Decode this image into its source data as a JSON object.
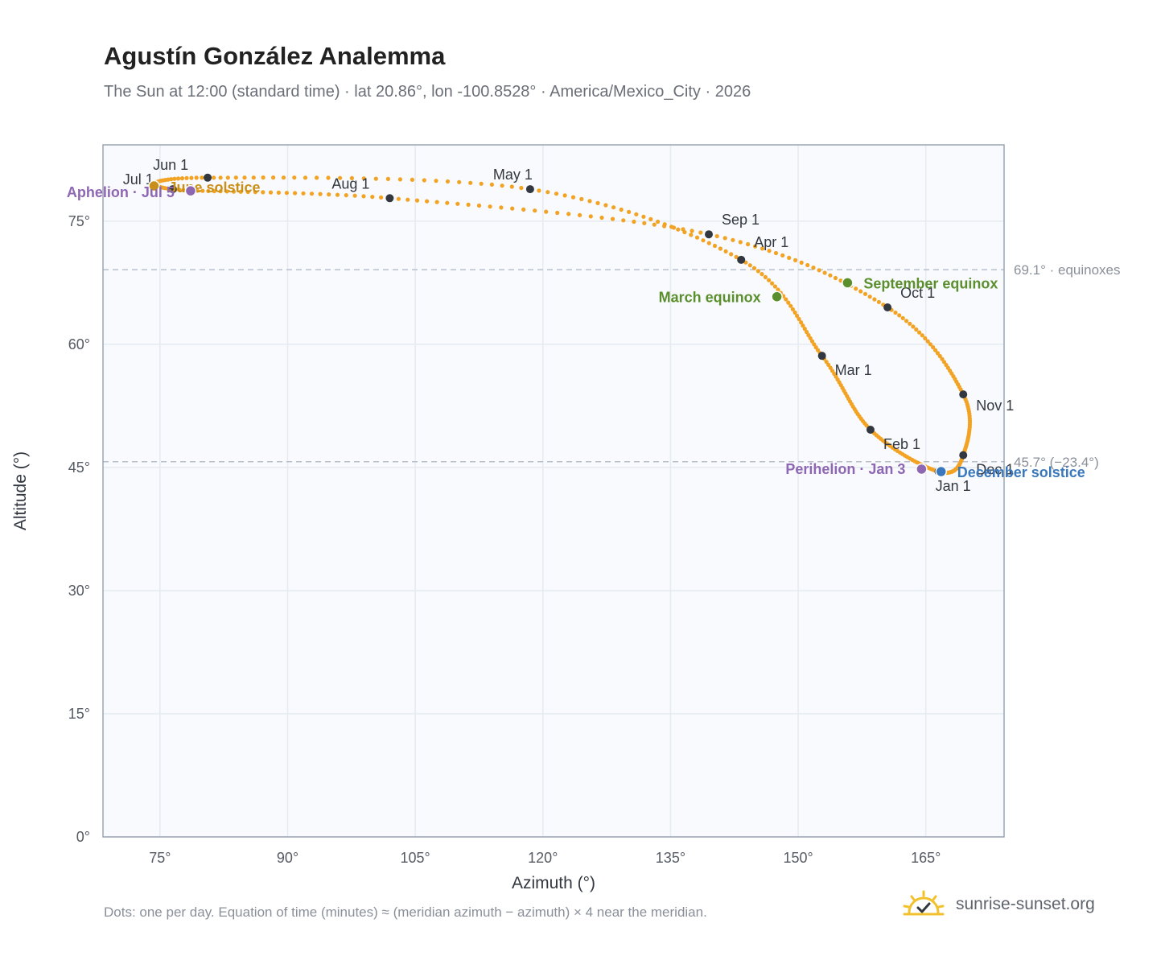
{
  "title": "Agustín González Analemma",
  "subtitle": "The Sun at 12:00 (standard time) · lat 20.86°, lon -100.8528° · America/Mexico_City · 2026",
  "footnote": "Dots: one per day. Equation of time (minutes) ≈ (meridian azimuth − azimuth) × 4 near the meridian.",
  "brand": {
    "name": "sunrise-sunset.org",
    "icon": "sun-logo-icon"
  },
  "colors": {
    "path": "#f2a324",
    "month_dot": "#333840",
    "equinox": "#5b8f2e",
    "solstice_june": "#c8901a",
    "solstice_december": "#3a78bd",
    "apsis": "#8e67b3",
    "plot_background": "#f8fafd",
    "grid": "#e6ebf1",
    "reference_line": "#b7c0cc"
  },
  "chart_data": {
    "type": "scatter",
    "xlabel": "Azimuth (°)",
    "ylabel": "Altitude (°)",
    "xlim": [
      68.3,
      174.2
    ],
    "ylim": [
      0,
      84.3
    ],
    "x_ticks": [
      75,
      90,
      105,
      120,
      135,
      150,
      165
    ],
    "x_tick_labels": [
      "75°",
      "90°",
      "105°",
      "120°",
      "135°",
      "150°",
      "165°"
    ],
    "y_ticks": [
      0,
      15,
      30,
      45,
      60,
      75
    ],
    "y_tick_labels": [
      "0°",
      "15°",
      "30°",
      "45°",
      "60°",
      "75°"
    ],
    "grid": true,
    "reference_lines": [
      {
        "altitude": 69.1,
        "label": "69.1° · equinoxes"
      },
      {
        "altitude": 45.7,
        "label": "45.7° (−23.4°)"
      }
    ],
    "month_points": [
      {
        "label": "Jan 1",
        "azimuth": 166.5,
        "altitude": 44.5
      },
      {
        "label": "Feb 1",
        "azimuth": 158.5,
        "altitude": 49.6
      },
      {
        "label": "Mar 1",
        "azimuth": 152.8,
        "altitude": 58.6
      },
      {
        "label": "Apr 1",
        "azimuth": 143.3,
        "altitude": 70.3
      },
      {
        "label": "May 1",
        "azimuth": 118.5,
        "altitude": 78.9
      },
      {
        "label": "Jun 1",
        "azimuth": 80.6,
        "altitude": 80.3
      },
      {
        "label": "Jul 1",
        "azimuth": 76.5,
        "altitude": 78.9
      },
      {
        "label": "Aug 1",
        "azimuth": 102.0,
        "altitude": 77.8
      },
      {
        "label": "Sep 1",
        "azimuth": 139.5,
        "altitude": 73.4
      },
      {
        "label": "Oct 1",
        "azimuth": 160.5,
        "altitude": 64.5
      },
      {
        "label": "Nov 1",
        "azimuth": 169.4,
        "altitude": 53.9
      },
      {
        "label": "Dec 1",
        "azimuth": 169.4,
        "altitude": 46.5
      }
    ],
    "events": [
      {
        "label": "March equinox",
        "azimuth": 147.5,
        "altitude": 65.8,
        "kind": "equinox"
      },
      {
        "label": "September equinox",
        "azimuth": 155.8,
        "altitude": 67.5,
        "kind": "equinox"
      },
      {
        "label": "June solstice",
        "azimuth": 74.3,
        "altitude": 79.3,
        "kind": "solstice_june"
      },
      {
        "label": "December solstice",
        "azimuth": 166.8,
        "altitude": 44.5,
        "kind": "solstice_december"
      },
      {
        "label": "Perihelion · Jan 3",
        "azimuth": 164.5,
        "altitude": 44.8,
        "kind": "apsis"
      },
      {
        "label": "Aphelion · Jul 5",
        "azimuth": 78.6,
        "altitude": 78.7,
        "kind": "apsis"
      }
    ]
  }
}
